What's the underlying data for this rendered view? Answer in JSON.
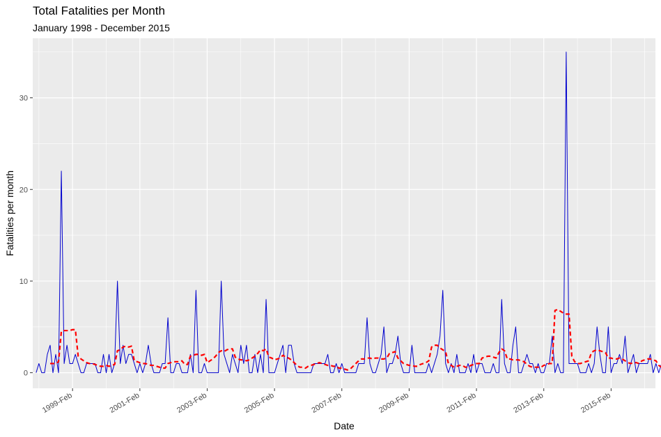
{
  "chart_data": {
    "type": "line",
    "title": "Total Fatalities per Month",
    "subtitle": "January 1998 - December 2015",
    "xlabel": "Date",
    "ylabel": "Fatalities per month",
    "ylim": [
      -1.7,
      36.5
    ],
    "yticks": [
      0,
      10,
      20,
      30
    ],
    "xlim": [
      1997.9,
      2016.4
    ],
    "xticks": [
      {
        "label": "1999-Feb",
        "value": 1999.083
      },
      {
        "label": "2001-Feb",
        "value": 2001.083
      },
      {
        "label": "2003-Feb",
        "value": 2003.083
      },
      {
        "label": "2005-Feb",
        "value": 2005.083
      },
      {
        "label": "2007-Feb",
        "value": 2007.083
      },
      {
        "label": "2009-Feb",
        "value": 2009.083
      },
      {
        "label": "2011-Feb",
        "value": 2011.083
      },
      {
        "label": "2013-Feb",
        "value": 2013.083
      },
      {
        "label": "2015-Feb",
        "value": 2015.083
      }
    ],
    "grid": true,
    "x_start": 1998.0,
    "x_step": 0.08333,
    "series": [
      {
        "style": "solid",
        "color": "#0000cd",
        "values": [
          0,
          1,
          0,
          0,
          2,
          3,
          0,
          2,
          0,
          22,
          1,
          3,
          1,
          1,
          2,
          1,
          0,
          0,
          1,
          1,
          1,
          1,
          0,
          0,
          2,
          0,
          2,
          0,
          1,
          10,
          1,
          3,
          1,
          2,
          2,
          1,
          0,
          1,
          0,
          1,
          3,
          1,
          0,
          0,
          0,
          1,
          1,
          6,
          0,
          0,
          1,
          1,
          0,
          0,
          0,
          2,
          0,
          9,
          0,
          0,
          1,
          0,
          0,
          0,
          0,
          0,
          10,
          2,
          1,
          0,
          2,
          1,
          0,
          3,
          1,
          3,
          0,
          0,
          2,
          0,
          2,
          0,
          8,
          0,
          0,
          0,
          1,
          2,
          3,
          0,
          3,
          3,
          1,
          0,
          0,
          0,
          0,
          0,
          0,
          1,
          1,
          1,
          1,
          1,
          2,
          0,
          0,
          1,
          0,
          1,
          0,
          0,
          0,
          0,
          0,
          1,
          1,
          1,
          6,
          1,
          0,
          0,
          1,
          2,
          5,
          0,
          1,
          1,
          2,
          4,
          1,
          0,
          0,
          0,
          3,
          0,
          0,
          0,
          0,
          0,
          1,
          0,
          1,
          2,
          4,
          9,
          1,
          0,
          1,
          0,
          2,
          0,
          0,
          0,
          1,
          0,
          2,
          0,
          1,
          1,
          0,
          0,
          0,
          1,
          0,
          0,
          8,
          1,
          0,
          0,
          3,
          5,
          0,
          0,
          1,
          2,
          1,
          1,
          0,
          1,
          0,
          0,
          1,
          1,
          4,
          0,
          1,
          0,
          0,
          35,
          1,
          1,
          1,
          1,
          0,
          0,
          0,
          1,
          0,
          1,
          5,
          2,
          0,
          0,
          5,
          0,
          1,
          1,
          2,
          1,
          4,
          0,
          1,
          2,
          0,
          1,
          1,
          1,
          1,
          2,
          0,
          1,
          0,
          1,
          1,
          6,
          0,
          1,
          0,
          0,
          0,
          3,
          2,
          4,
          5,
          2,
          0,
          2,
          0,
          0,
          7,
          1,
          1,
          1,
          1,
          0,
          0,
          1,
          0,
          2,
          0,
          1,
          3,
          6,
          0,
          0,
          0,
          0,
          0,
          0,
          0,
          1
        ]
      },
      {
        "style": "dashed",
        "color": "#ff0000",
        "values": [
          null,
          null,
          null,
          null,
          null,
          1,
          1,
          1,
          1.2,
          4.5,
          4.6,
          4.6,
          4.6,
          4.7,
          4.7,
          1.8,
          1.5,
          1.3,
          1.1,
          1.0,
          1.0,
          0.9,
          0.8,
          0.7,
          0.7,
          0.8,
          0.7,
          0.8,
          0.9,
          2.4,
          2.5,
          2.8,
          2.9,
          2.8,
          2.9,
          1.3,
          1.2,
          1.1,
          1.0,
          1.0,
          0.9,
          0.8,
          0.8,
          0.7,
          0.6,
          0.5,
          0.5,
          1.0,
          1.1,
          1.2,
          1.2,
          1.2,
          1.3,
          0.9,
          0.9,
          1.8,
          1.9,
          2.0,
          2.0,
          1.9,
          2.0,
          1.1,
          1.3,
          1.5,
          1.8,
          2.2,
          2.4,
          2.3,
          2.5,
          2.6,
          2.6,
          1.7,
          1.5,
          1.4,
          1.4,
          1.3,
          1.4,
          1.6,
          1.8,
          2.1,
          2.5,
          2.4,
          2.6,
          1.7,
          1.6,
          1.4,
          1.5,
          1.6,
          1.9,
          1.7,
          1.6,
          1.4,
          1.1,
          0.8,
          0.6,
          0.6,
          0.5,
          0.7,
          0.8,
          0.9,
          1.0,
          1.1,
          1.0,
          0.9,
          0.8,
          0.8,
          0.7,
          0.7,
          0.5,
          0.5,
          0.4,
          0.3,
          0.4,
          0.7,
          1.0,
          1.3,
          1.5,
          1.5,
          1.6,
          1.6,
          1.5,
          1.6,
          1.6,
          1.5,
          1.5,
          1.6,
          2.1,
          2.2,
          2.3,
          1.6,
          1.3,
          1.0,
          0.9,
          0.8,
          0.8,
          0.7,
          0.7,
          0.9,
          1.0,
          1.1,
          1.3,
          2.8,
          3.0,
          3.0,
          2.7,
          2.5,
          2.3,
          1.0,
          0.8,
          0.6,
          0.7,
          0.8,
          0.8,
          0.6,
          0.6,
          0.8,
          0.9,
          1.0,
          1.0,
          1.6,
          1.7,
          1.8,
          1.8,
          1.7,
          1.6,
          2.2,
          2.6,
          2.4,
          1.5,
          1.5,
          1.4,
          1.4,
          1.4,
          1.3,
          1.2,
          0.9,
          0.7,
          0.6,
          0.6,
          0.6,
          0.6,
          0.8,
          0.9,
          1.0,
          1.0,
          6.8,
          6.9,
          6.7,
          6.5,
          6.4,
          6.4,
          1.8,
          1.2,
          1.0,
          1.0,
          1.1,
          1.2,
          1.3,
          2.2,
          2.4,
          2.5,
          2.4,
          2.3,
          2.2,
          1.6,
          1.6,
          1.5,
          1.5,
          1.6,
          1.5,
          1.3,
          1.1,
          1.0,
          1.1,
          1.1,
          1.0,
          1.3,
          1.4,
          1.5,
          1.5,
          1.4,
          1.3,
          0.8,
          0.6,
          0.5,
          1.5,
          2.0,
          2.4,
          2.6,
          2.8,
          2.6,
          2.5,
          2.2,
          1.9,
          1.6,
          1.4,
          1.3,
          1.8,
          2.0,
          2.1,
          1.9,
          1.7,
          1.5
        ]
      }
    ]
  }
}
